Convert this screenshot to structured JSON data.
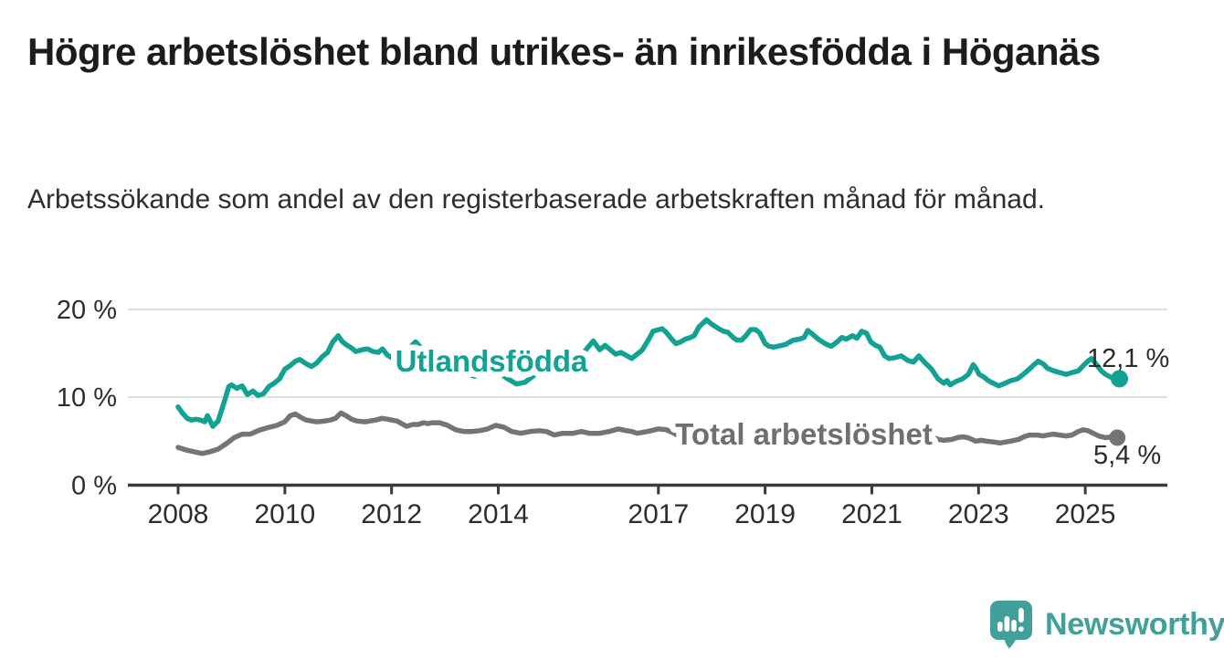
{
  "header": {
    "title": "Högre arbetslöshet bland utrikes- än inrikesfödda i Höganäs",
    "subtitle": "Arbetssökande som andel av den registerbaserade arbetskraften månad för månad."
  },
  "chart_data": {
    "type": "line",
    "title": "Högre arbetslöshet bland utrikes- än inrikesfödda i Höganäs",
    "subtitle": "Arbetssökande som andel av den registerbaserade arbetskraften månad för månad.",
    "unit": "%",
    "x_axis": {
      "ticks": [
        2008,
        2010,
        2012,
        2014,
        2017,
        2019,
        2021,
        2023,
        2025
      ],
      "range": [
        2007.1,
        2026.6
      ]
    },
    "y_axis": {
      "ticks": [
        0,
        10,
        20
      ],
      "tick_suffix": " %",
      "range": [
        0,
        20
      ],
      "gridlines": [
        10,
        20
      ]
    },
    "legend_position": "inline-labels",
    "grid": true,
    "series": [
      {
        "name": "Utlandsfödda",
        "color": "#12a192",
        "end_value": 12.1,
        "end_label": "12,1 %",
        "points": [
          [
            2008.0,
            8.9
          ],
          [
            2008.08,
            8.2
          ],
          [
            2008.17,
            7.6
          ],
          [
            2008.25,
            7.4
          ],
          [
            2008.33,
            7.5
          ],
          [
            2008.42,
            7.4
          ],
          [
            2008.5,
            7.2
          ],
          [
            2008.55,
            7.9
          ],
          [
            2008.65,
            6.7
          ],
          [
            2008.75,
            7.3
          ],
          [
            2008.85,
            9.2
          ],
          [
            2008.95,
            11.2
          ],
          [
            2009.0,
            11.4
          ],
          [
            2009.1,
            11.0
          ],
          [
            2009.2,
            11.3
          ],
          [
            2009.3,
            10.3
          ],
          [
            2009.4,
            10.7
          ],
          [
            2009.5,
            10.2
          ],
          [
            2009.6,
            10.4
          ],
          [
            2009.7,
            11.2
          ],
          [
            2009.8,
            11.6
          ],
          [
            2009.9,
            12.1
          ],
          [
            2010.0,
            13.2
          ],
          [
            2010.1,
            13.6
          ],
          [
            2010.2,
            14.1
          ],
          [
            2010.28,
            14.3
          ],
          [
            2010.4,
            13.8
          ],
          [
            2010.5,
            13.5
          ],
          [
            2010.6,
            13.9
          ],
          [
            2010.7,
            14.6
          ],
          [
            2010.8,
            15.1
          ],
          [
            2010.9,
            16.3
          ],
          [
            2011.0,
            17.0
          ],
          [
            2011.08,
            16.3
          ],
          [
            2011.17,
            15.9
          ],
          [
            2011.25,
            15.6
          ],
          [
            2011.33,
            15.2
          ],
          [
            2011.45,
            15.4
          ],
          [
            2011.55,
            15.5
          ],
          [
            2011.65,
            15.2
          ],
          [
            2011.75,
            15.1
          ],
          [
            2011.83,
            15.5
          ],
          [
            2011.92,
            14.8
          ],
          [
            2012.0,
            14.5
          ],
          [
            2012.15,
            14.8
          ],
          [
            2012.3,
            15.4
          ],
          [
            2012.45,
            16.3
          ],
          [
            2012.6,
            15.3
          ],
          [
            2012.75,
            14.6
          ],
          [
            2012.9,
            14.2
          ],
          [
            2013.1,
            13.7
          ],
          [
            2013.3,
            13.1
          ],
          [
            2013.45,
            12.6
          ],
          [
            2013.56,
            12.4
          ],
          [
            2013.7,
            13.0
          ],
          [
            2013.85,
            13.4
          ],
          [
            2014.0,
            12.9
          ],
          [
            2014.15,
            12.2
          ],
          [
            2014.34,
            11.5
          ],
          [
            2014.5,
            11.7
          ],
          [
            2014.65,
            12.4
          ],
          [
            2014.8,
            13.1
          ],
          [
            2015.0,
            13.7
          ],
          [
            2015.2,
            14.1
          ],
          [
            2015.4,
            14.4
          ],
          [
            2015.55,
            14.7
          ],
          [
            2015.67,
            15.6
          ],
          [
            2015.78,
            16.4
          ],
          [
            2015.9,
            15.4
          ],
          [
            2016.0,
            15.9
          ],
          [
            2016.2,
            14.9
          ],
          [
            2016.3,
            15.1
          ],
          [
            2016.5,
            14.4
          ],
          [
            2016.7,
            15.4
          ],
          [
            2016.82,
            16.6
          ],
          [
            2016.9,
            17.5
          ],
          [
            2017.07,
            17.8
          ],
          [
            2017.16,
            17.3
          ],
          [
            2017.25,
            16.6
          ],
          [
            2017.33,
            16.1
          ],
          [
            2017.42,
            16.3
          ],
          [
            2017.5,
            16.6
          ],
          [
            2017.6,
            16.8
          ],
          [
            2017.67,
            17.0
          ],
          [
            2017.76,
            18.0
          ],
          [
            2017.9,
            18.8
          ],
          [
            2018.0,
            18.3
          ],
          [
            2018.13,
            17.8
          ],
          [
            2018.22,
            17.5
          ],
          [
            2018.3,
            17.4
          ],
          [
            2018.4,
            16.8
          ],
          [
            2018.47,
            16.5
          ],
          [
            2018.56,
            16.5
          ],
          [
            2018.64,
            17.0
          ],
          [
            2018.73,
            17.7
          ],
          [
            2018.82,
            17.7
          ],
          [
            2018.9,
            17.3
          ],
          [
            2019.0,
            16.1
          ],
          [
            2019.07,
            15.8
          ],
          [
            2019.16,
            15.7
          ],
          [
            2019.24,
            15.8
          ],
          [
            2019.38,
            16.0
          ],
          [
            2019.53,
            16.5
          ],
          [
            2019.64,
            16.6
          ],
          [
            2019.73,
            16.8
          ],
          [
            2019.8,
            17.6
          ],
          [
            2019.9,
            17.1
          ],
          [
            2020.0,
            16.6
          ],
          [
            2020.12,
            16.1
          ],
          [
            2020.24,
            15.8
          ],
          [
            2020.35,
            16.3
          ],
          [
            2020.44,
            16.8
          ],
          [
            2020.52,
            16.6
          ],
          [
            2020.64,
            17.0
          ],
          [
            2020.72,
            16.7
          ],
          [
            2020.81,
            17.5
          ],
          [
            2020.9,
            17.3
          ],
          [
            2020.98,
            16.3
          ],
          [
            2021.07,
            15.9
          ],
          [
            2021.15,
            15.7
          ],
          [
            2021.24,
            14.7
          ],
          [
            2021.32,
            14.4
          ],
          [
            2021.44,
            14.5
          ],
          [
            2021.55,
            14.7
          ],
          [
            2021.67,
            14.2
          ],
          [
            2021.78,
            14.0
          ],
          [
            2021.88,
            14.7
          ],
          [
            2022.0,
            13.9
          ],
          [
            2022.12,
            13.2
          ],
          [
            2022.24,
            12.1
          ],
          [
            2022.35,
            11.6
          ],
          [
            2022.41,
            11.9
          ],
          [
            2022.47,
            11.4
          ],
          [
            2022.58,
            11.8
          ],
          [
            2022.7,
            12.1
          ],
          [
            2022.81,
            12.6
          ],
          [
            2022.9,
            13.7
          ],
          [
            2022.95,
            13.3
          ],
          [
            2023.01,
            12.6
          ],
          [
            2023.1,
            12.3
          ],
          [
            2023.18,
            11.9
          ],
          [
            2023.27,
            11.6
          ],
          [
            2023.38,
            11.3
          ],
          [
            2023.5,
            11.6
          ],
          [
            2023.61,
            11.9
          ],
          [
            2023.73,
            12.1
          ],
          [
            2023.84,
            12.6
          ],
          [
            2023.95,
            13.2
          ],
          [
            2024.04,
            13.7
          ],
          [
            2024.12,
            14.1
          ],
          [
            2024.21,
            13.8
          ],
          [
            2024.29,
            13.3
          ],
          [
            2024.41,
            13.0
          ],
          [
            2024.52,
            12.8
          ],
          [
            2024.64,
            12.6
          ],
          [
            2024.75,
            12.8
          ],
          [
            2024.87,
            13.0
          ],
          [
            2024.98,
            13.7
          ],
          [
            2025.07,
            14.2
          ],
          [
            2025.12,
            14.4
          ],
          [
            2025.21,
            13.7
          ],
          [
            2025.3,
            13.0
          ],
          [
            2025.38,
            12.6
          ],
          [
            2025.47,
            12.3
          ],
          [
            2025.55,
            12.1
          ],
          [
            2025.64,
            12.1
          ]
        ]
      },
      {
        "name": "Total arbetslöshet",
        "color": "#747474",
        "end_value": 5.4,
        "end_label": "5,4 %",
        "points": [
          [
            2008.0,
            4.3
          ],
          [
            2008.15,
            4.0
          ],
          [
            2008.3,
            3.8
          ],
          [
            2008.45,
            3.6
          ],
          [
            2008.6,
            3.8
          ],
          [
            2008.75,
            4.1
          ],
          [
            2008.9,
            4.7
          ],
          [
            2009.05,
            5.4
          ],
          [
            2009.2,
            5.8
          ],
          [
            2009.35,
            5.8
          ],
          [
            2009.5,
            6.2
          ],
          [
            2009.6,
            6.4
          ],
          [
            2009.72,
            6.6
          ],
          [
            2009.85,
            6.8
          ],
          [
            2010.0,
            7.2
          ],
          [
            2010.1,
            7.9
          ],
          [
            2010.2,
            8.1
          ],
          [
            2010.3,
            7.7
          ],
          [
            2010.4,
            7.4
          ],
          [
            2010.5,
            7.3
          ],
          [
            2010.6,
            7.2
          ],
          [
            2010.75,
            7.3
          ],
          [
            2010.85,
            7.4
          ],
          [
            2010.95,
            7.6
          ],
          [
            2011.05,
            8.2
          ],
          [
            2011.15,
            7.9
          ],
          [
            2011.25,
            7.5
          ],
          [
            2011.35,
            7.3
          ],
          [
            2011.5,
            7.2
          ],
          [
            2011.6,
            7.3
          ],
          [
            2011.7,
            7.4
          ],
          [
            2011.82,
            7.6
          ],
          [
            2011.93,
            7.5
          ],
          [
            2012.0,
            7.4
          ],
          [
            2012.1,
            7.3
          ],
          [
            2012.28,
            6.7
          ],
          [
            2012.4,
            6.9
          ],
          [
            2012.5,
            6.9
          ],
          [
            2012.6,
            7.1
          ],
          [
            2012.68,
            7.0
          ],
          [
            2012.77,
            7.1
          ],
          [
            2012.9,
            7.1
          ],
          [
            2013.05,
            6.8
          ],
          [
            2013.2,
            6.3
          ],
          [
            2013.35,
            6.1
          ],
          [
            2013.5,
            6.1
          ],
          [
            2013.65,
            6.2
          ],
          [
            2013.8,
            6.4
          ],
          [
            2013.95,
            6.8
          ],
          [
            2014.1,
            6.6
          ],
          [
            2014.25,
            6.1
          ],
          [
            2014.42,
            5.9
          ],
          [
            2014.6,
            6.1
          ],
          [
            2014.76,
            6.2
          ],
          [
            2014.9,
            6.1
          ],
          [
            2015.05,
            5.7
          ],
          [
            2015.2,
            5.9
          ],
          [
            2015.4,
            5.9
          ],
          [
            2015.56,
            6.1
          ],
          [
            2015.7,
            5.9
          ],
          [
            2015.9,
            5.9
          ],
          [
            2016.08,
            6.1
          ],
          [
            2016.25,
            6.4
          ],
          [
            2016.4,
            6.2
          ],
          [
            2016.5,
            6.1
          ],
          [
            2016.6,
            5.9
          ],
          [
            2016.8,
            6.1
          ],
          [
            2017.0,
            6.4
          ],
          [
            2017.15,
            6.3
          ],
          [
            2017.3,
            5.9
          ],
          [
            2017.45,
            5.3
          ],
          [
            2017.6,
            5.2
          ],
          [
            2017.8,
            5.1
          ],
          [
            2018.0,
            5.2
          ],
          [
            2018.3,
            5.0
          ],
          [
            2018.6,
            5.1
          ],
          [
            2019.0,
            5.3
          ],
          [
            2019.3,
            5.2
          ],
          [
            2019.6,
            5.4
          ],
          [
            2020.0,
            5.8
          ],
          [
            2020.3,
            6.4
          ],
          [
            2020.6,
            6.6
          ],
          [
            2020.9,
            6.5
          ],
          [
            2021.2,
            6.3
          ],
          [
            2021.5,
            6.0
          ],
          [
            2021.8,
            5.7
          ],
          [
            2022.0,
            5.5
          ],
          [
            2022.12,
            5.5
          ],
          [
            2022.25,
            5.2
          ],
          [
            2022.35,
            5.1
          ],
          [
            2022.5,
            5.2
          ],
          [
            2022.6,
            5.4
          ],
          [
            2022.7,
            5.5
          ],
          [
            2022.8,
            5.4
          ],
          [
            2022.95,
            5.0
          ],
          [
            2023.05,
            5.1
          ],
          [
            2023.15,
            5.0
          ],
          [
            2023.3,
            4.9
          ],
          [
            2023.4,
            4.8
          ],
          [
            2023.5,
            4.9
          ],
          [
            2023.6,
            5.0
          ],
          [
            2023.75,
            5.2
          ],
          [
            2023.85,
            5.5
          ],
          [
            2023.95,
            5.7
          ],
          [
            2024.1,
            5.7
          ],
          [
            2024.2,
            5.6
          ],
          [
            2024.3,
            5.7
          ],
          [
            2024.4,
            5.8
          ],
          [
            2024.52,
            5.7
          ],
          [
            2024.64,
            5.6
          ],
          [
            2024.75,
            5.7
          ],
          [
            2024.87,
            6.1
          ],
          [
            2024.96,
            6.3
          ],
          [
            2025.05,
            6.2
          ],
          [
            2025.15,
            5.9
          ],
          [
            2025.25,
            5.6
          ],
          [
            2025.38,
            5.4
          ],
          [
            2025.5,
            5.5
          ],
          [
            2025.6,
            5.4
          ]
        ]
      }
    ],
    "colors": {
      "grid": "#dcdcdc",
      "axis": "#3b3b3b",
      "tick_text": "#2d2d2d",
      "annotation_text": "#2b2b2b"
    }
  },
  "footer": {
    "brand": "Newsworthy",
    "logo_icon": "speech-bubble-bar-chart-icon",
    "brand_color": "#41a099"
  }
}
